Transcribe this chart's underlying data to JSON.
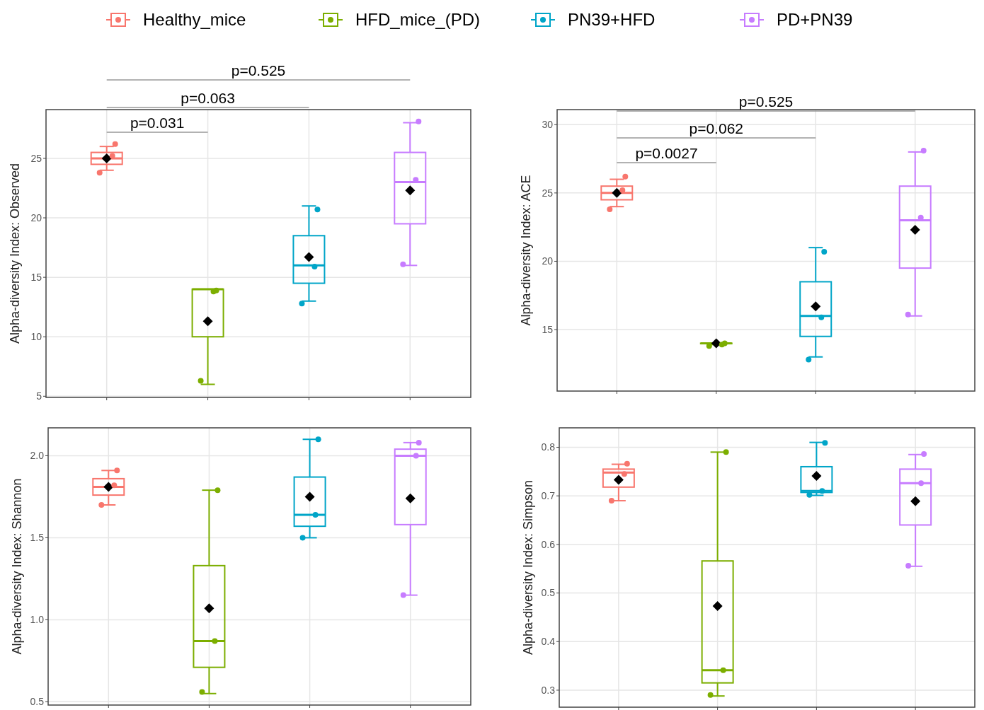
{
  "chart_data": [
    {
      "type": "box",
      "ylabel": "Alpha-diversity Index: Observed",
      "categories": [
        null,
        null,
        null,
        null
      ],
      "ylim": [
        4.9,
        29.1
      ],
      "yticks": [
        5,
        10,
        15,
        20,
        25
      ],
      "grid": true,
      "legend": "top",
      "tick_labels": "y",
      "annotations": [
        "p=0.031",
        "p=0.063",
        "p=0.525"
      ],
      "series": [
        {
          "name": "Healthy_mice",
          "color": "#f8766d",
          "boxes": [
            {
              "low": 24,
              "q1": 24.5,
              "median": 25,
              "q3": 25.5,
              "high": 26,
              "mean": 25
            },
            null,
            null,
            null
          ]
        },
        {
          "name": "HFD_mice_(PD)",
          "color": "#7cae00",
          "boxes": [
            null,
            {
              "low": 6,
              "q1": 10,
              "median": 14,
              "q3": 14,
              "high": 14,
              "mean": 11.3
            },
            null,
            null
          ]
        },
        {
          "name": "PN39+HFD",
          "color": "#00a5c8",
          "boxes": [
            null,
            null,
            {
              "low": 13,
              "q1": 14.5,
              "median": 16,
              "q3": 18.5,
              "high": 21,
              "mean": 16.7
            },
            null
          ]
        },
        {
          "name": "PD+PN39",
          "color": "#c77cff",
          "boxes": [
            null,
            null,
            null,
            {
              "low": 16,
              "q1": 19.5,
              "median": 23,
              "q3": 25.5,
              "high": 28,
              "mean": 22.3
            }
          ]
        },
        {
          "type": "scatter",
          "colors": [
            "#f8766d",
            "#7cae00",
            "#00a5c8",
            "#c77cff"
          ],
          "values": [
            23.8,
            6.3,
            12.8,
            16.1
          ]
        },
        {
          "type": "scatter",
          "colors": [
            "#f8766d",
            "#7cae00",
            "#00a5c8",
            "#c77cff"
          ],
          "values": [
            25.2,
            13.8,
            15.9,
            23.2
          ]
        },
        {
          "type": "scatter",
          "colors": [
            "#f8766d",
            "#7cae00",
            "#00a5c8",
            "#c77cff"
          ],
          "values": [
            26.2,
            13.9,
            20.7,
            28.1
          ]
        }
      ]
    },
    {
      "type": "box",
      "ylabel": "Alpha-diversity Index: ACE",
      "categories": [
        null,
        null,
        null,
        null
      ],
      "ylim": [
        10.5,
        31.1
      ],
      "yticks": [
        15,
        20,
        25,
        30
      ],
      "grid": true,
      "tick_labels": "y",
      "annotations": [
        "p=0.0027",
        "p=0.062",
        "p=0.525"
      ],
      "series": [
        {
          "color": "#f8766d",
          "boxes": [
            {
              "low": 24,
              "q1": 24.5,
              "median": 25,
              "q3": 25.5,
              "high": 26,
              "mean": 25
            },
            null,
            null,
            null
          ]
        },
        {
          "color": "#7cae00",
          "boxes": [
            null,
            {
              "low": 13.9,
              "q1": 14,
              "median": 14,
              "q3": 14,
              "high": 14,
              "mean": 14
            },
            null,
            null
          ]
        },
        {
          "color": "#00a5c8",
          "boxes": [
            null,
            null,
            {
              "low": 13,
              "q1": 14.5,
              "median": 16,
              "q3": 18.5,
              "high": 21,
              "mean": 16.7
            },
            null
          ]
        },
        {
          "color": "#c77cff",
          "boxes": [
            null,
            null,
            null,
            {
              "low": 16,
              "q1": 19.5,
              "median": 23,
              "q3": 25.5,
              "high": 28,
              "mean": 22.3
            }
          ]
        },
        {
          "type": "scatter",
          "colors": [
            "#f8766d",
            "#7cae00",
            "#00a5c8",
            "#c77cff"
          ],
          "values": [
            23.8,
            13.8,
            12.8,
            16.1
          ]
        },
        {
          "type": "scatter",
          "colors": [
            "#f8766d",
            "#7cae00",
            "#00a5c8",
            "#c77cff"
          ],
          "values": [
            25.2,
            13.9,
            15.9,
            23.2
          ]
        },
        {
          "type": "scatter",
          "colors": [
            "#f8766d",
            "#7cae00",
            "#00a5c8",
            "#c77cff"
          ],
          "values": [
            26.2,
            14,
            20.7,
            28.1
          ]
        }
      ]
    },
    {
      "type": "box",
      "ylabel": "Alpha-diversity Index: Shannon",
      "categories": [
        null,
        null,
        null,
        null
      ],
      "ylim": [
        0.48,
        2.17
      ],
      "yticks": [
        {
          "value": 0.5,
          "label": "0.5"
        },
        {
          "value": 1,
          "label": "1.0"
        },
        {
          "value": 1.5,
          "label": "1.5"
        },
        {
          "value": 2,
          "label": "2.0"
        }
      ],
      "grid": true,
      "tick_labels": "y",
      "series": [
        {
          "color": "#f8766d",
          "boxes": [
            {
              "low": 1.7,
              "q1": 1.76,
              "median": 1.81,
              "q3": 1.86,
              "high": 1.91,
              "mean": 1.81
            },
            null,
            null,
            null
          ]
        },
        {
          "color": "#7cae00",
          "boxes": [
            null,
            {
              "low": 0.55,
              "q1": 0.71,
              "median": 0.87,
              "q3": 1.33,
              "high": 1.79,
              "mean": 1.07
            },
            null,
            null
          ]
        },
        {
          "color": "#00a5c8",
          "boxes": [
            null,
            null,
            {
              "low": 1.5,
              "q1": 1.57,
              "median": 1.64,
              "q3": 1.87,
              "high": 2.1,
              "mean": 1.75
            },
            null
          ]
        },
        {
          "color": "#c77cff",
          "boxes": [
            null,
            null,
            null,
            {
              "low": 1.15,
              "q1": 1.58,
              "median": 2,
              "q3": 2.04,
              "high": 2.08,
              "mean": 1.74
            }
          ]
        },
        {
          "type": "scatter",
          "colors": [
            "#f8766d",
            "#7cae00",
            "#00a5c8",
            "#c77cff"
          ],
          "values": [
            1.7,
            0.56,
            1.5,
            1.15
          ]
        },
        {
          "type": "scatter",
          "colors": [
            "#f8766d",
            "#7cae00",
            "#00a5c8",
            "#c77cff"
          ],
          "values": [
            1.82,
            0.87,
            1.64,
            2
          ]
        },
        {
          "type": "scatter",
          "colors": [
            "#f8766d",
            "#7cae00",
            "#00a5c8",
            "#c77cff"
          ],
          "values": [
            1.91,
            1.79,
            2.1,
            2.08
          ]
        }
      ]
    },
    {
      "type": "box",
      "ylabel": "Alpha-diversity Index: Simpson",
      "categories": [
        null,
        null,
        null,
        null
      ],
      "ylim": [
        0.265,
        0.84
      ],
      "yticks": [
        0.3,
        0.4,
        0.5,
        0.6,
        0.7,
        0.8
      ],
      "grid": true,
      "tick_labels": "y",
      "series": [
        {
          "color": "#f8766d",
          "boxes": [
            {
              "low": 0.69,
              "q1": 0.718,
              "median": 0.748,
              "q3": 0.755,
              "high": 0.765,
              "mean": 0.733
            },
            null,
            null,
            null
          ]
        },
        {
          "color": "#7cae00",
          "boxes": [
            null,
            {
              "low": 0.288,
              "q1": 0.315,
              "median": 0.341,
              "q3": 0.566,
              "high": 0.79,
              "mean": 0.473
            },
            null,
            null
          ]
        },
        {
          "color": "#00a5c8",
          "boxes": [
            null,
            null,
            {
              "low": 0.701,
              "q1": 0.707,
              "median": 0.71,
              "q3": 0.76,
              "high": 0.81,
              "mean": 0.741
            },
            null
          ]
        },
        {
          "color": "#c77cff",
          "boxes": [
            null,
            null,
            null,
            {
              "low": 0.555,
              "q1": 0.64,
              "median": 0.726,
              "q3": 0.755,
              "high": 0.785,
              "mean": 0.689
            }
          ]
        },
        {
          "type": "scatter",
          "colors": [
            "#f8766d",
            "#7cae00",
            "#00a5c8",
            "#c77cff"
          ],
          "values": [
            0.69,
            0.29,
            0.702,
            0.556
          ]
        },
        {
          "type": "scatter",
          "colors": [
            "#f8766d",
            "#7cae00",
            "#00a5c8",
            "#c77cff"
          ],
          "values": [
            0.745,
            0.341,
            0.71,
            0.726
          ]
        },
        {
          "type": "scatter",
          "colors": [
            "#f8766d",
            "#7cae00",
            "#00a5c8",
            "#c77cff"
          ],
          "values": [
            0.766,
            0.79,
            0.809,
            0.786
          ]
        }
      ]
    }
  ]
}
